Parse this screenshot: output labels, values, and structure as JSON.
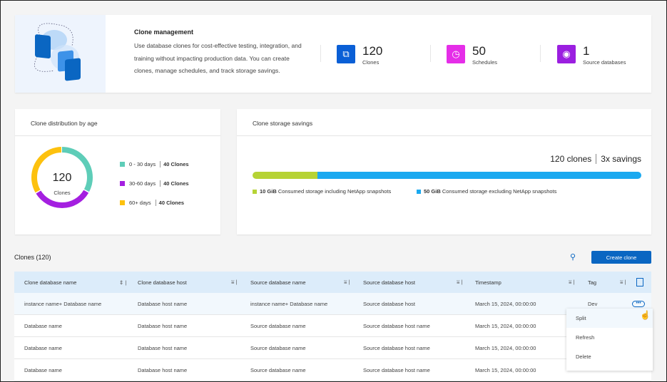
{
  "hero": {
    "title": "Clone management",
    "description": "Use database clones for cost-effective testing, integration, and training without impacting production data. You can create clones, manage schedules, and track storage savings.",
    "stats": [
      {
        "value": "120",
        "label": "Clones",
        "icon": "copy-icon",
        "color": "#0a5fd6"
      },
      {
        "value": "50",
        "label": "Schedules",
        "icon": "clock-icon",
        "color": "#e52ee8"
      },
      {
        "value": "1",
        "label": "Source databases",
        "icon": "database-icon",
        "color": "#9b1fe0"
      }
    ]
  },
  "distribution": {
    "title": "Clone distribution by age",
    "total": "120",
    "total_label": "Clones",
    "items": [
      {
        "label": "0 - 30 days",
        "count": "40 Clones",
        "color": "#5ecdb8",
        "value": 40
      },
      {
        "label": "30-60 days",
        "count": "40 Clones",
        "color": "#a41fe0",
        "value": 40
      },
      {
        "label": "60+ days",
        "count": "40 Clones",
        "color": "#fdc10e",
        "value": 40
      }
    ]
  },
  "savings": {
    "title": "Clone storage savings",
    "clones": "120 clones",
    "savings": "3x savings",
    "segments": [
      {
        "amount": "10 GiB",
        "label": "Consumed storage including NetApp snapshots",
        "color": "#b6d335",
        "value": 10
      },
      {
        "amount": "50 GiB",
        "label": "Consumed storage excluding NetApp snapshots",
        "color": "#1aa9f0",
        "value": 50
      }
    ]
  },
  "clones": {
    "title": "Clones (120)",
    "create_label": "Create clone",
    "columns": [
      "Clone database name",
      "Clone database host",
      "Source database name",
      "Source database host",
      "Timestamp",
      "Tag"
    ],
    "rows": [
      [
        "instance name+ Database name",
        "Database host name",
        "instance name+ Database name",
        "Source database host",
        "March 15, 2024, 00:00:00",
        "Dev"
      ],
      [
        "Database name",
        "Database host name",
        "Source database name",
        "Source database host name",
        "March 15, 2024, 00:00:00",
        ""
      ],
      [
        "Database name",
        "Database host name",
        "Source database name",
        "Source database host name",
        "March 15, 2024, 00:00:00",
        ""
      ],
      [
        "Database name",
        "Database host name",
        "Source database name",
        "Source database host name",
        "March 15, 2024, 00:00:00",
        ""
      ]
    ]
  },
  "menu": [
    "Split",
    "Refresh",
    "Delete"
  ]
}
